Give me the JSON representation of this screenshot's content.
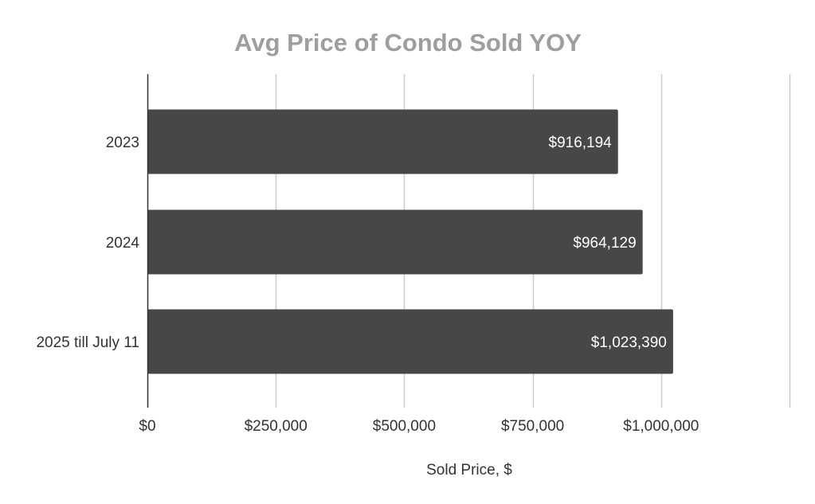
{
  "chart_data": {
    "type": "bar",
    "orientation": "horizontal",
    "title": "Avg Price of Condo Sold YOY",
    "xlabel": "Sold Price, $",
    "ylabel": "",
    "categories": [
      "2023",
      "2024",
      "2025 till July 11"
    ],
    "values": [
      916194,
      964129,
      1023390
    ],
    "data_labels": [
      "$916,194",
      "$964,129",
      "$1,023,390"
    ],
    "xlim": [
      0,
      1250000
    ],
    "x_ticks": [
      0,
      250000,
      500000,
      750000,
      1000000
    ],
    "x_tick_labels": [
      "$0",
      "$250,000",
      "$500,000",
      "$750,000",
      "$1,000,000"
    ],
    "grid": true,
    "legend": "none",
    "colors": {
      "bar": "#474747",
      "title": "#9e9e9e",
      "grid": "#cccccc",
      "axis": "#333333",
      "tick_label": "#333333",
      "data_label": "#ffffff"
    }
  }
}
